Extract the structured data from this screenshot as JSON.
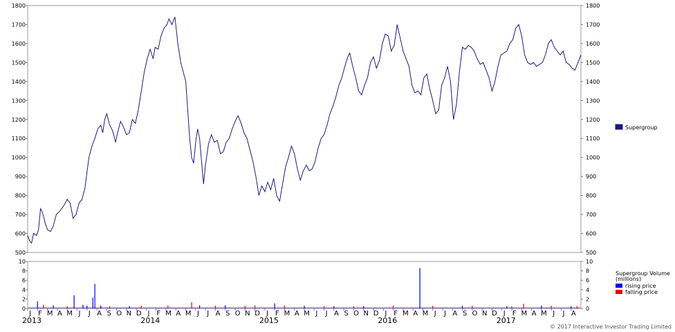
{
  "chart_data": [
    {
      "type": "line",
      "title": "",
      "xlabel": "",
      "ylabel": "",
      "ylim": [
        500,
        1800
      ],
      "yticks": [
        500,
        600,
        700,
        800,
        900,
        1000,
        1100,
        1200,
        1300,
        1400,
        1500,
        1600,
        1700,
        1800
      ],
      "grid": false,
      "legend": "right",
      "x_months": [
        "J",
        "F",
        "M",
        "A",
        "M",
        "J",
        "J",
        "A",
        "S",
        "O",
        "N",
        "D",
        "J",
        "F",
        "M",
        "A",
        "M",
        "J",
        "J",
        "A",
        "S",
        "O",
        "N",
        "D",
        "J",
        "F",
        "M",
        "A",
        "M",
        "J",
        "J",
        "A",
        "S",
        "O",
        "N",
        "D",
        "J",
        "F",
        "M",
        "A",
        "M",
        "J",
        "J",
        "A",
        "S",
        "O",
        "N",
        "D",
        "J",
        "F",
        "M",
        "A",
        "M",
        "J",
        "J",
        "A"
      ],
      "x_years": [
        {
          "label": "2013",
          "month_index": 0
        },
        {
          "label": "2014",
          "month_index": 12
        },
        {
          "label": "2015",
          "month_index": 24
        },
        {
          "label": "2016",
          "month_index": 36
        },
        {
          "label": "2017",
          "month_index": 48
        }
      ],
      "series": [
        {
          "name": "Supergroup",
          "color": "#1a1a80",
          "points": [
            [
              0,
              590
            ],
            [
              0.2,
              560
            ],
            [
              0.4,
              550
            ],
            [
              0.6,
              600
            ],
            [
              0.9,
              590
            ],
            [
              1.1,
              620
            ],
            [
              1.3,
              730
            ],
            [
              1.5,
              710
            ],
            [
              1.8,
              650
            ],
            [
              2.0,
              620
            ],
            [
              2.3,
              610
            ],
            [
              2.6,
              640
            ],
            [
              2.9,
              700
            ],
            [
              3.3,
              720
            ],
            [
              3.7,
              750
            ],
            [
              4.0,
              780
            ],
            [
              4.3,
              760
            ],
            [
              4.6,
              680
            ],
            [
              4.9,
              700
            ],
            [
              5.2,
              760
            ],
            [
              5.5,
              780
            ],
            [
              5.8,
              840
            ],
            [
              6.0,
              920
            ],
            [
              6.2,
              1000
            ],
            [
              6.5,
              1060
            ],
            [
              6.8,
              1100
            ],
            [
              7.1,
              1150
            ],
            [
              7.4,
              1170
            ],
            [
              7.6,
              1130
            ],
            [
              7.8,
              1200
            ],
            [
              8.0,
              1230
            ],
            [
              8.3,
              1170
            ],
            [
              8.6,
              1140
            ],
            [
              8.9,
              1080
            ],
            [
              9.1,
              1130
            ],
            [
              9.4,
              1190
            ],
            [
              9.7,
              1160
            ],
            [
              10.0,
              1120
            ],
            [
              10.3,
              1130
            ],
            [
              10.6,
              1200
            ],
            [
              10.9,
              1180
            ],
            [
              11.2,
              1250
            ],
            [
              11.5,
              1350
            ],
            [
              11.8,
              1450
            ],
            [
              12.1,
              1520
            ],
            [
              12.4,
              1570
            ],
            [
              12.7,
              1520
            ],
            [
              12.9,
              1580
            ],
            [
              13.2,
              1570
            ],
            [
              13.5,
              1640
            ],
            [
              13.8,
              1680
            ],
            [
              14.1,
              1700
            ],
            [
              14.3,
              1730
            ],
            [
              14.6,
              1700
            ],
            [
              14.9,
              1740
            ],
            [
              15.2,
              1600
            ],
            [
              15.5,
              1500
            ],
            [
              15.8,
              1440
            ],
            [
              16.0,
              1400
            ],
            [
              16.2,
              1250
            ],
            [
              16.4,
              1100
            ],
            [
              16.6,
              1000
            ],
            [
              16.8,
              970
            ],
            [
              17.0,
              1080
            ],
            [
              17.2,
              1150
            ],
            [
              17.4,
              1100
            ],
            [
              17.6,
              980
            ],
            [
              17.8,
              860
            ],
            [
              18.0,
              960
            ],
            [
              18.3,
              1070
            ],
            [
              18.6,
              1120
            ],
            [
              18.9,
              1080
            ],
            [
              19.2,
              1090
            ],
            [
              19.5,
              1020
            ],
            [
              19.8,
              1030
            ],
            [
              20.1,
              1080
            ],
            [
              20.4,
              1100
            ],
            [
              20.7,
              1150
            ],
            [
              21.0,
              1190
            ],
            [
              21.3,
              1220
            ],
            [
              21.6,
              1180
            ],
            [
              21.9,
              1130
            ],
            [
              22.2,
              1100
            ],
            [
              22.5,
              1040
            ],
            [
              22.8,
              980
            ],
            [
              23.1,
              900
            ],
            [
              23.4,
              800
            ],
            [
              23.7,
              850
            ],
            [
              24.0,
              820
            ],
            [
              24.3,
              870
            ],
            [
              24.6,
              830
            ],
            [
              24.9,
              890
            ],
            [
              25.2,
              800
            ],
            [
              25.5,
              770
            ],
            [
              25.8,
              860
            ],
            [
              26.1,
              950
            ],
            [
              26.4,
              1000
            ],
            [
              26.7,
              1060
            ],
            [
              27.0,
              1020
            ],
            [
              27.3,
              940
            ],
            [
              27.6,
              880
            ],
            [
              27.9,
              930
            ],
            [
              28.2,
              960
            ],
            [
              28.5,
              930
            ],
            [
              28.8,
              940
            ],
            [
              29.1,
              980
            ],
            [
              29.4,
              1050
            ],
            [
              29.7,
              1100
            ],
            [
              30.0,
              1120
            ],
            [
              30.3,
              1170
            ],
            [
              30.6,
              1230
            ],
            [
              30.9,
              1270
            ],
            [
              31.2,
              1320
            ],
            [
              31.5,
              1380
            ],
            [
              31.8,
              1420
            ],
            [
              32.1,
              1480
            ],
            [
              32.4,
              1530
            ],
            [
              32.6,
              1550
            ],
            [
              32.9,
              1480
            ],
            [
              33.2,
              1420
            ],
            [
              33.5,
              1350
            ],
            [
              33.8,
              1330
            ],
            [
              34.1,
              1380
            ],
            [
              34.4,
              1420
            ],
            [
              34.7,
              1500
            ],
            [
              35.0,
              1530
            ],
            [
              35.3,
              1470
            ],
            [
              35.6,
              1510
            ],
            [
              35.9,
              1600
            ],
            [
              36.2,
              1650
            ],
            [
              36.5,
              1640
            ],
            [
              36.8,
              1560
            ],
            [
              37.1,
              1590
            ],
            [
              37.4,
              1700
            ],
            [
              37.7,
              1630
            ],
            [
              38.0,
              1560
            ],
            [
              38.3,
              1520
            ],
            [
              38.6,
              1480
            ],
            [
              38.9,
              1380
            ],
            [
              39.2,
              1340
            ],
            [
              39.5,
              1350
            ],
            [
              39.8,
              1330
            ],
            [
              40.1,
              1420
            ],
            [
              40.4,
              1440
            ],
            [
              40.7,
              1360
            ],
            [
              41.0,
              1300
            ],
            [
              41.3,
              1230
            ],
            [
              41.6,
              1250
            ],
            [
              41.9,
              1380
            ],
            [
              42.2,
              1420
            ],
            [
              42.5,
              1480
            ],
            [
              42.8,
              1400
            ],
            [
              43.1,
              1200
            ],
            [
              43.4,
              1280
            ],
            [
              43.7,
              1450
            ],
            [
              44.0,
              1580
            ],
            [
              44.3,
              1570
            ],
            [
              44.6,
              1590
            ],
            [
              44.9,
              1580
            ],
            [
              45.2,
              1560
            ],
            [
              45.5,
              1520
            ],
            [
              45.8,
              1490
            ],
            [
              46.1,
              1500
            ],
            [
              46.4,
              1460
            ],
            [
              46.7,
              1420
            ],
            [
              47.0,
              1350
            ],
            [
              47.3,
              1400
            ],
            [
              47.6,
              1480
            ],
            [
              47.9,
              1540
            ],
            [
              48.2,
              1550
            ],
            [
              48.5,
              1560
            ],
            [
              48.8,
              1600
            ],
            [
              49.1,
              1620
            ],
            [
              49.4,
              1680
            ],
            [
              49.7,
              1700
            ],
            [
              50.0,
              1640
            ],
            [
              50.3,
              1540
            ],
            [
              50.6,
              1500
            ],
            [
              50.9,
              1490
            ],
            [
              51.2,
              1500
            ],
            [
              51.5,
              1480
            ],
            [
              51.8,
              1490
            ],
            [
              52.1,
              1500
            ],
            [
              52.4,
              1540
            ],
            [
              52.7,
              1600
            ],
            [
              53.0,
              1620
            ],
            [
              53.3,
              1580
            ],
            [
              53.6,
              1560
            ],
            [
              53.9,
              1540
            ],
            [
              54.2,
              1560
            ],
            [
              54.5,
              1500
            ],
            [
              54.8,
              1490
            ],
            [
              55.1,
              1470
            ],
            [
              55.4,
              1460
            ],
            [
              55.7,
              1500
            ],
            [
              56.0,
              1540
            ]
          ]
        }
      ]
    },
    {
      "type": "bar",
      "title": "",
      "ylim": [
        0,
        10
      ],
      "yticks": [
        0,
        2,
        4,
        6,
        8,
        10
      ],
      "grid": false,
      "legend": "right",
      "legend_title": "Supergroup Volume\n(millions)",
      "series": [
        {
          "name": "rising price",
          "color": "#0000ee",
          "points": [
            [
              1.0,
              1.5
            ],
            [
              2.6,
              0.7
            ],
            [
              4.7,
              2.8
            ],
            [
              5.6,
              0.8
            ],
            [
              6.0,
              0.6
            ],
            [
              6.6,
              2.3
            ],
            [
              6.8,
              5.2
            ],
            [
              7.4,
              0.6
            ],
            [
              10.3,
              0.5
            ],
            [
              17.4,
              0.7
            ],
            [
              20.0,
              0.7
            ],
            [
              25.0,
              1.1
            ],
            [
              28.0,
              0.6
            ],
            [
              31.0,
              0.5
            ],
            [
              34.0,
              0.5
            ],
            [
              39.7,
              8.6
            ],
            [
              44.0,
              0.6
            ],
            [
              48.5,
              0.5
            ],
            [
              52.0,
              0.6
            ],
            [
              55.0,
              0.5
            ]
          ]
        },
        {
          "name": "falling price",
          "color": "#ee0000",
          "points": [
            [
              1.6,
              0.8
            ],
            [
              4.0,
              0.5
            ],
            [
              8.3,
              0.5
            ],
            [
              11.5,
              0.6
            ],
            [
              14.2,
              0.7
            ],
            [
              16.6,
              1.3
            ],
            [
              19.0,
              0.6
            ],
            [
              22.0,
              0.6
            ],
            [
              23.0,
              0.7
            ],
            [
              26.0,
              0.6
            ],
            [
              30.0,
              0.5
            ],
            [
              33.0,
              0.5
            ],
            [
              37.0,
              0.6
            ],
            [
              41.0,
              0.6
            ],
            [
              45.0,
              0.6
            ],
            [
              49.0,
              0.5
            ],
            [
              50.2,
              1.0
            ],
            [
              53.0,
              0.6
            ],
            [
              55.6,
              0.5
            ]
          ]
        }
      ]
    }
  ],
  "footer": {
    "copyright": "© 2017 Interactive Investor Trading Limited"
  }
}
